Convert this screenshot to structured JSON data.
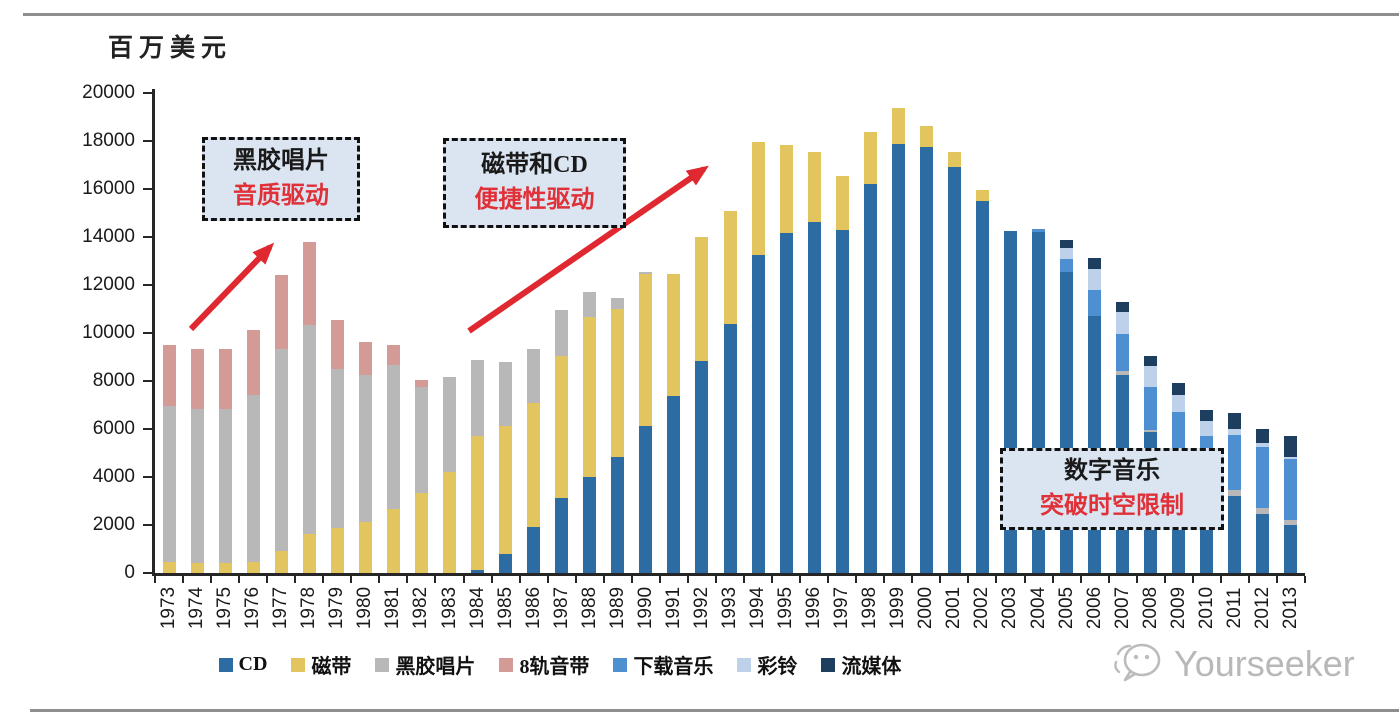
{
  "unit_label": "百万美元",
  "annotations": [
    {
      "line1": "黑胶唱片",
      "line2": "音质驱动"
    },
    {
      "line1": "磁带和CD",
      "line2": "便捷性驱动"
    },
    {
      "line1": "数字音乐",
      "line2": "突破时空限制"
    }
  ],
  "watermark": {
    "brand": "Yourseeker",
    "icon": "wechat-icon"
  },
  "colors": {
    "annotation_bg": "#dbe5f1",
    "annotation_red": "#e03038",
    "arrow_red": "#e02830",
    "axis": "#262626"
  },
  "chart_data": {
    "type": "bar",
    "stacked": true,
    "title": "",
    "xlabel": "",
    "ylabel": "百万美元",
    "ylim": [
      0,
      20000
    ],
    "y_ticks": [
      0,
      2000,
      4000,
      6000,
      8000,
      10000,
      12000,
      14000,
      16000,
      18000,
      20000
    ],
    "grid": false,
    "legend_position": "bottom",
    "categories": [
      "1973",
      "1974",
      "1975",
      "1976",
      "1977",
      "1978",
      "1979",
      "1980",
      "1981",
      "1982",
      "1983",
      "1984",
      "1985",
      "1986",
      "1987",
      "1988",
      "1989",
      "1990",
      "1991",
      "1992",
      "1993",
      "1994",
      "1995",
      "1996",
      "1997",
      "1998",
      "1999",
      "2000",
      "2001",
      "2002",
      "2003",
      "2004",
      "2005",
      "2006",
      "2007",
      "2008",
      "2009",
      "2010",
      "2011",
      "2012",
      "2013"
    ],
    "series": [
      {
        "name": "CD",
        "color": "#2d6ca2",
        "values": [
          0,
          0,
          0,
          0,
          0,
          0,
          0,
          0,
          0,
          0,
          0,
          140,
          800,
          1900,
          3120,
          3980,
          4820,
          6140,
          7360,
          8820,
          10380,
          13240,
          14180,
          14620,
          14280,
          16200,
          17870,
          17770,
          16910,
          15500,
          14230,
          14200,
          12530,
          10700,
          8240,
          5860,
          4630,
          4220,
          3220,
          2460,
          1990
        ]
      },
      {
        "name": "磁带",
        "color": "#e2c55e",
        "values": [
          450,
          400,
          430,
          470,
          930,
          1630,
          1870,
          2140,
          2660,
          3330,
          4200,
          5580,
          5310,
          5180,
          5940,
          6700,
          6190,
          6300,
          5110,
          5160,
          4720,
          4710,
          3650,
          2930,
          2280,
          2160,
          1490,
          840,
          620,
          440,
          0,
          0,
          0,
          0,
          0,
          0,
          0,
          0,
          0,
          0,
          0
        ]
      },
      {
        "name": "黑胶唱片",
        "color": "#b8b8b8",
        "values": [
          6500,
          6430,
          6400,
          6960,
          8410,
          8720,
          6630,
          6090,
          6020,
          4420,
          3970,
          3170,
          2670,
          2270,
          1880,
          1020,
          460,
          110,
          0,
          0,
          0,
          0,
          0,
          0,
          0,
          0,
          0,
          0,
          0,
          0,
          0,
          0,
          0,
          0,
          170,
          80,
          170,
          170,
          220,
          240,
          220
        ]
      },
      {
        "name": "8轨音带",
        "color": "#d49b96",
        "values": [
          2530,
          2510,
          2510,
          2690,
          3060,
          3440,
          2060,
          1390,
          800,
          280,
          0,
          0,
          0,
          0,
          0,
          0,
          0,
          0,
          0,
          0,
          0,
          0,
          0,
          0,
          0,
          0,
          0,
          0,
          0,
          0,
          0,
          0,
          0,
          0,
          0,
          0,
          0,
          0,
          0,
          0,
          0
        ]
      },
      {
        "name": "下载音乐",
        "color": "#4d8fd1",
        "values": [
          0,
          0,
          0,
          0,
          0,
          0,
          0,
          0,
          0,
          0,
          0,
          0,
          0,
          0,
          0,
          0,
          0,
          0,
          0,
          0,
          0,
          0,
          0,
          0,
          0,
          0,
          0,
          0,
          0,
          0,
          0,
          150,
          540,
          1110,
          1530,
          1800,
          1890,
          1310,
          2290,
          2570,
          2520
        ]
      },
      {
        "name": "彩铃",
        "color": "#bdd2ea",
        "values": [
          0,
          0,
          0,
          0,
          0,
          0,
          0,
          0,
          0,
          0,
          0,
          0,
          0,
          0,
          0,
          0,
          0,
          0,
          0,
          0,
          0,
          0,
          0,
          0,
          0,
          0,
          0,
          0,
          0,
          0,
          0,
          0,
          490,
          870,
          930,
          900,
          740,
          630,
          280,
          150,
          100
        ]
      },
      {
        "name": "流媒体",
        "color": "#1d3e5e",
        "values": [
          0,
          0,
          0,
          0,
          0,
          0,
          0,
          0,
          0,
          0,
          0,
          0,
          0,
          0,
          0,
          0,
          0,
          0,
          0,
          0,
          0,
          0,
          0,
          0,
          0,
          0,
          0,
          0,
          0,
          0,
          0,
          0,
          330,
          430,
          420,
          420,
          490,
          460,
          640,
          580,
          860
        ]
      }
    ]
  }
}
